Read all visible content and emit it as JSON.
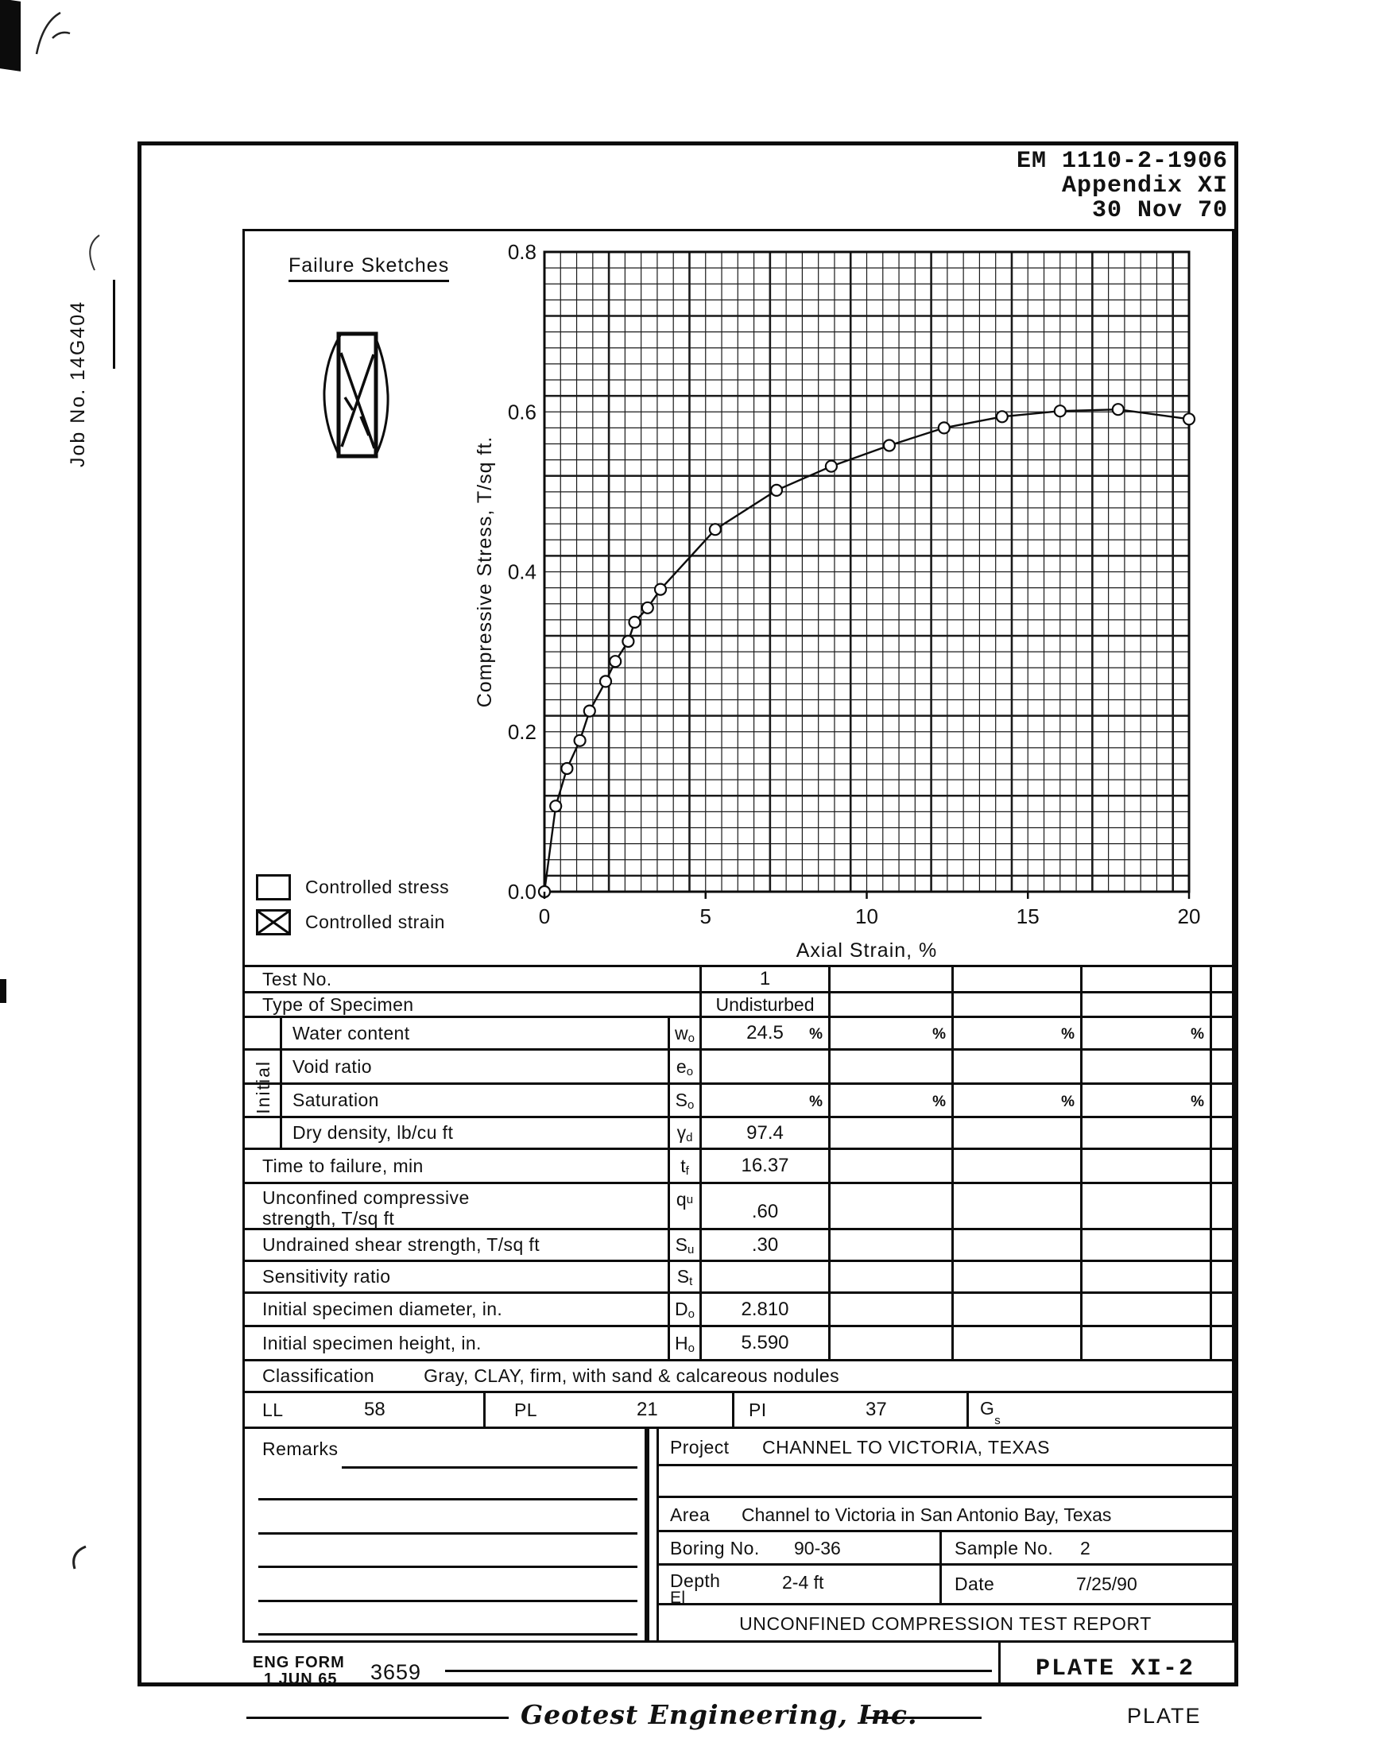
{
  "page": {
    "header": [
      "EM 1110-2-1906",
      "Appendix XI",
      "30 Nov 70"
    ],
    "job_no": "Job No.  14G404",
    "footer": {
      "eng_form_line1": "ENG FORM",
      "eng_form_line2": "1 JUN 65",
      "form_number": "3659",
      "company": "Geotest Engineering, Inc.",
      "plate": "PLATE XI-2",
      "plate_label": "PLATE"
    }
  },
  "chart": {
    "failure_sketches_label": "Failure Sketches",
    "legend": [
      {
        "symbol": "empty-square",
        "label": "Controlled stress"
      },
      {
        "symbol": "x-square",
        "label": "Controlled strain"
      }
    ]
  },
  "chart_data": {
    "type": "line",
    "title": "",
    "xlabel": "Axial Strain, %",
    "ylabel": "Compressive Stress, T/sq ft.",
    "xlim": [
      0,
      20
    ],
    "ylim": [
      0,
      0.8
    ],
    "xticks": [
      "0",
      "5",
      "10",
      "15",
      "20"
    ],
    "yticks": [
      "0.0",
      "0.2",
      "0.4",
      "0.6",
      "0.8"
    ],
    "grid": "graph-paper, minor 0.5 x / 0.02 y, heavy line every 5th minor",
    "legend_position": "bottom-left outside plot",
    "marker": "open-circle",
    "x": [
      0,
      0.35,
      0.7,
      1.1,
      1.4,
      1.9,
      2.2,
      2.6,
      2.8,
      3.2,
      3.6,
      5.3,
      7.2,
      8.9,
      10.7,
      12.4,
      14.2,
      16.0,
      17.8,
      20.0
    ],
    "y": [
      0,
      0.107,
      0.154,
      0.189,
      0.226,
      0.263,
      0.288,
      0.313,
      0.337,
      0.355,
      0.378,
      0.453,
      0.502,
      0.532,
      0.558,
      0.58,
      0.594,
      0.601,
      0.603,
      0.591
    ]
  },
  "table": {
    "initial_group_label": "Initial",
    "rows": [
      {
        "label": "Test No.",
        "v1": "1"
      },
      {
        "label": "Type of Specimen",
        "v1": "Undisturbed"
      },
      {
        "label": "Water content",
        "sym_b": "w",
        "sym_s": "o",
        "v1": "24.5",
        "u1": "%",
        "u2": "%",
        "u3": "%",
        "u4": "%"
      },
      {
        "label": "Void ratio",
        "sym_b": "e",
        "sym_s": "o"
      },
      {
        "label": "Saturation",
        "sym_b": "S",
        "sym_s": "o",
        "u1": "%",
        "u2": "%",
        "u3": "%",
        "u4": "%"
      },
      {
        "label": "Dry density, lb/cu ft",
        "sym_b": "γ",
        "sym_s": "d",
        "v1": "97.4"
      },
      {
        "label": "Time to failure, min",
        "sym_b": "t",
        "sym_s": "f",
        "v1": "16.37"
      },
      {
        "label1": "Unconfined compressive",
        "label2": "strength, T/sq ft",
        "sym_b": "q",
        "sym_s": "u",
        "v1": ".60"
      },
      {
        "label": "Undrained shear strength, T/sq ft",
        "sym_b": "S",
        "sym_s": "u",
        "v1": ".30"
      },
      {
        "label": "Sensitivity ratio",
        "sym_b": "S",
        "sym_s": "t"
      },
      {
        "label": "Initial specimen diameter, in.",
        "sym_b": "D",
        "sym_s": "o",
        "v1": "2.810"
      },
      {
        "label": "Initial specimen height, in.",
        "sym_b": "H",
        "sym_s": "o",
        "v1": "5.590"
      }
    ],
    "classification": {
      "label": "Classification",
      "value": "Gray, CLAY, firm, with sand & calcareous nodules"
    },
    "atterberg": [
      {
        "label": "LL",
        "value": "58"
      },
      {
        "label": "PL",
        "value": "21"
      },
      {
        "label": "PI",
        "value": "37"
      },
      {
        "label": "G",
        "sub": "s",
        "value": ""
      }
    ]
  },
  "remarks": {
    "label": "Remarks"
  },
  "project": {
    "project_label": "Project",
    "project_value": "CHANNEL TO VICTORIA, TEXAS",
    "area_label": "Area",
    "area_value": "Channel to Victoria in San Antonio Bay, Texas",
    "boring_label": "Boring No.",
    "boring_value": "90-36",
    "sample_label": "Sample No.",
    "sample_value": "2",
    "depth_label": "Depth",
    "el_label": "El",
    "depth_value": "2-4 ft",
    "date_label": "Date",
    "date_value": "7/25/90",
    "report_title": "UNCONFINED COMPRESSION TEST REPORT"
  }
}
